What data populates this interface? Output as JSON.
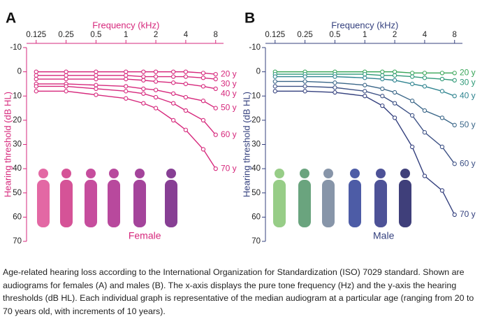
{
  "chart_data": [
    {
      "type": "line",
      "panel_label": "A",
      "xlabel": "Frequency (kHz)",
      "ylabel": "Hearing threshold (dB HL)",
      "annotation": "Female",
      "axis_color": "#d6287c",
      "xscale": "log",
      "invert_y": true,
      "x": [
        0.125,
        0.25,
        0.5,
        1,
        1.5,
        2,
        3,
        4,
        6,
        8
      ],
      "xlim": [
        0.1,
        9.6
      ],
      "xticks": [
        0.125,
        0.25,
        0.5,
        1,
        2,
        4,
        8
      ],
      "ylim": [
        -10,
        70
      ],
      "yticks": [
        -10,
        0,
        10,
        20,
        30,
        40,
        50,
        60,
        70
      ],
      "series": [
        {
          "name": "20 y",
          "color": "#d6287c",
          "values": [
            0,
            0,
            0,
            0,
            0,
            0,
            0,
            0,
            0.5,
            1
          ]
        },
        {
          "name": "30 y",
          "color": "#d6287c",
          "values": [
            1.5,
            1.5,
            1.5,
            1.5,
            2,
            2,
            2,
            2,
            2.5,
            3
          ]
        },
        {
          "name": "40 y",
          "color": "#d6287c",
          "values": [
            3,
            3,
            3,
            3,
            3.5,
            4,
            4.5,
            5,
            6,
            7
          ]
        },
        {
          "name": "50 y",
          "color": "#d6287c",
          "values": [
            5,
            5,
            5.5,
            6,
            7,
            7.5,
            9,
            10.5,
            12,
            15
          ]
        },
        {
          "name": "60 y",
          "color": "#d6287c",
          "values": [
            6,
            6,
            7,
            8,
            9,
            10.5,
            13,
            16,
            20,
            26
          ]
        },
        {
          "name": "70 y",
          "color": "#d6287c",
          "values": [
            8,
            8,
            9.5,
            11,
            13,
            15,
            20,
            24,
            32,
            40
          ]
        }
      ]
    },
    {
      "type": "line",
      "panel_label": "B",
      "xlabel": "Frequency (kHz)",
      "ylabel": "Hearing threshold (dB HL)",
      "annotation": "Male",
      "axis_color": "#34407e",
      "xscale": "log",
      "invert_y": true,
      "x": [
        0.125,
        0.25,
        0.5,
        1,
        1.5,
        2,
        3,
        4,
        6,
        8
      ],
      "xlim": [
        0.1,
        9.6
      ],
      "xticks": [
        0.125,
        0.25,
        0.5,
        1,
        2,
        4,
        8
      ],
      "ylim": [
        -10,
        70
      ],
      "yticks": [
        -10,
        0,
        10,
        20,
        30,
        40,
        50,
        60,
        70
      ],
      "series": [
        {
          "name": "20 y",
          "color": "#3aa65a",
          "values": [
            0,
            0,
            0,
            0,
            0,
            0,
            0.5,
            0.5,
            0.5,
            0.5
          ]
        },
        {
          "name": "30 y",
          "color": "#2f9a78",
          "values": [
            1,
            1,
            1,
            1,
            1.5,
            1.5,
            2,
            2.5,
            3,
            3.5
          ]
        },
        {
          "name": "40 y",
          "color": "#2f8490",
          "values": [
            2,
            2,
            2,
            2.5,
            3,
            3.5,
            5,
            6,
            8,
            10
          ]
        },
        {
          "name": "50 y",
          "color": "#3a6688",
          "values": [
            4,
            4,
            4.5,
            5.5,
            7,
            8.5,
            12,
            16,
            19,
            22
          ]
        },
        {
          "name": "60 y",
          "color": "#3d5185",
          "values": [
            6,
            6,
            6.5,
            8,
            10,
            13,
            18,
            25,
            31,
            38
          ]
        },
        {
          "name": "70 y",
          "color": "#34407e",
          "values": [
            8,
            8,
            8.5,
            10,
            14,
            19,
            31,
            43,
            49,
            59
          ]
        }
      ]
    }
  ],
  "caption": "Age-related hearing loss according to the International Organization for Standardization (ISO) 7029 standard. Shown are audiograms for females (A) and males (B). The x-axis displays the pure tone frequency (Hz) and the y-axis the hearing thresholds (dB HL). Each individual graph is representative of the median audiogram at a particular age (ranging from 20 to 70 years old, with increments of 10 years)."
}
